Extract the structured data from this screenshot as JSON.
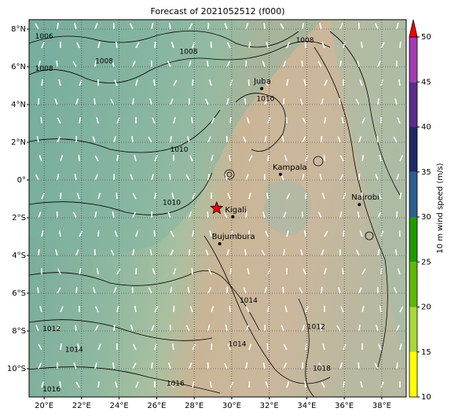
{
  "map": {
    "title": "Forecast of 2021052512 (f000)",
    "lonlim": [
      19.2,
      39.3
    ],
    "latlim": [
      -11.5,
      8.5
    ],
    "lon_ticks": [
      {
        "value": 20,
        "label": "20°E"
      },
      {
        "value": 22,
        "label": "22°E"
      },
      {
        "value": 24,
        "label": "24°E"
      },
      {
        "value": 26,
        "label": "26°E"
      },
      {
        "value": 28,
        "label": "28°E"
      },
      {
        "value": 30,
        "label": "30°E"
      },
      {
        "value": 32,
        "label": "32°E"
      },
      {
        "value": 34,
        "label": "34°E"
      },
      {
        "value": 36,
        "label": "36°E"
      },
      {
        "value": 38,
        "label": "38°E"
      }
    ],
    "lat_ticks": [
      {
        "value": 8,
        "label": "8°N"
      },
      {
        "value": 6,
        "label": "6°N"
      },
      {
        "value": 4,
        "label": "4°N"
      },
      {
        "value": 2,
        "label": "2°N"
      },
      {
        "value": 0,
        "label": "0°"
      },
      {
        "value": -2,
        "label": "2°S"
      },
      {
        "value": -4,
        "label": "4°S"
      },
      {
        "value": -6,
        "label": "6°S"
      },
      {
        "value": -8,
        "label": "8°S"
      },
      {
        "value": -10,
        "label": "10°S"
      }
    ],
    "cities": [
      {
        "name": "Juba",
        "lon": 31.6,
        "lat": 4.85
      },
      {
        "name": "Kampala",
        "lon": 32.6,
        "lat": 0.3
      },
      {
        "name": "Kigali",
        "lon": 30.06,
        "lat": -1.95
      },
      {
        "name": "Bujumbura",
        "lon": 29.36,
        "lat": -3.38
      },
      {
        "name": "Nairobi",
        "lon": 36.8,
        "lat": -1.3
      }
    ],
    "marker": {
      "lon": 29.2,
      "lat": -1.5,
      "color": "#ff0000"
    },
    "isobar_labels": [
      {
        "text": "1006",
        "lon": 20.0,
        "lat": 7.6
      },
      {
        "text": "1008",
        "lon": 20.0,
        "lat": 5.9
      },
      {
        "text": "1008",
        "lon": 23.2,
        "lat": 6.3
      },
      {
        "text": "1008",
        "lon": 27.7,
        "lat": 6.8
      },
      {
        "text": "1008",
        "lon": 33.9,
        "lat": 7.4
      },
      {
        "text": "1010",
        "lon": 31.8,
        "lat": 4.3
      },
      {
        "text": "1010",
        "lon": 27.2,
        "lat": 1.6
      },
      {
        "text": "1010",
        "lon": 26.8,
        "lat": -1.2
      },
      {
        "text": "1014",
        "lon": 30.9,
        "lat": -6.4
      },
      {
        "text": "1012",
        "lon": 20.4,
        "lat": -7.9
      },
      {
        "text": "1014",
        "lon": 21.6,
        "lat": -9.0
      },
      {
        "text": "1014",
        "lon": 30.3,
        "lat": -8.7
      },
      {
        "text": "1012",
        "lon": 34.5,
        "lat": -7.8
      },
      {
        "text": "1018",
        "lon": 34.8,
        "lat": -10.0
      },
      {
        "text": "1016",
        "lon": 20.4,
        "lat": -11.1
      },
      {
        "text": "1016",
        "lon": 27.0,
        "lat": -10.8
      }
    ],
    "colorbar": {
      "label": "10 m wind speed (m/s)",
      "ticks": [
        10,
        15,
        20,
        25,
        30,
        35,
        40,
        45,
        50
      ],
      "colors": [
        "#ffff00",
        "#a8d83a",
        "#5cb800",
        "#1e9a00",
        "#2a5f8c",
        "#1e2a62",
        "#5a2c8c",
        "#a43cb4"
      ],
      "extend_color": "#ff0000"
    }
  }
}
